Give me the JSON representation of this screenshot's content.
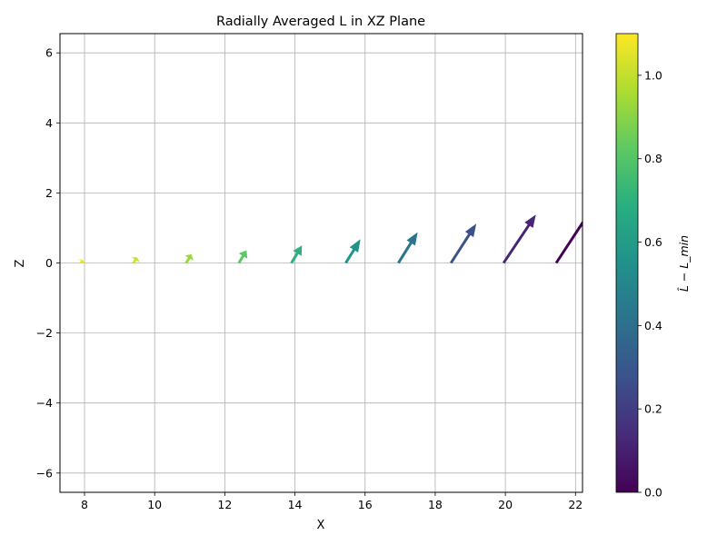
{
  "chart_data": {
    "type": "quiver",
    "title": "Radially Averaged L in XZ Plane",
    "xlabel": "X",
    "ylabel": "Z",
    "xlim": [
      7.3,
      22.2
    ],
    "ylim": [
      -6.55,
      6.55
    ],
    "xticks": [
      8,
      10,
      12,
      14,
      16,
      18,
      20,
      22
    ],
    "xtick_labels": [
      "8",
      "10",
      "12",
      "14",
      "16",
      "18",
      "20",
      "22"
    ],
    "yticks": [
      6,
      4,
      2,
      0,
      -2,
      -4,
      -6
    ],
    "ytick_labels": [
      "6",
      "4",
      "2",
      "0",
      "−2",
      "−4",
      "−6"
    ],
    "grid": true,
    "colormap": "viridis",
    "colorbar": {
      "label": "L̂ − L_min",
      "range": [
        0.0,
        1.1
      ],
      "ticks": [
        0.0,
        0.2,
        0.4,
        0.6,
        0.8,
        1.0
      ],
      "tick_labels": [
        "0.0",
        "0.2",
        "0.4",
        "0.6",
        "0.8",
        "1.0"
      ]
    },
    "vectors": [
      {
        "x": 7.9,
        "z": 0.0,
        "dx": 0.05,
        "dz": 0.08,
        "value": 1.07
      },
      {
        "x": 9.4,
        "z": 0.0,
        "dx": 0.1,
        "dz": 0.16,
        "value": 1.02
      },
      {
        "x": 10.9,
        "z": 0.0,
        "dx": 0.15,
        "dz": 0.25,
        "value": 0.93
      },
      {
        "x": 12.4,
        "z": 0.0,
        "dx": 0.22,
        "dz": 0.36,
        "value": 0.82
      },
      {
        "x": 13.9,
        "z": 0.0,
        "dx": 0.3,
        "dz": 0.5,
        "value": 0.7
      },
      {
        "x": 15.45,
        "z": 0.0,
        "dx": 0.42,
        "dz": 0.68,
        "value": 0.56
      },
      {
        "x": 16.95,
        "z": 0.0,
        "dx": 0.55,
        "dz": 0.88,
        "value": 0.42
      },
      {
        "x": 18.45,
        "z": 0.0,
        "dx": 0.72,
        "dz": 1.12,
        "value": 0.27
      },
      {
        "x": 19.95,
        "z": 0.0,
        "dx": 0.92,
        "dz": 1.38,
        "value": 0.12
      },
      {
        "x": 21.45,
        "z": 0.0,
        "dx": 1.1,
        "dz": 1.68,
        "value": 0.0
      }
    ]
  }
}
